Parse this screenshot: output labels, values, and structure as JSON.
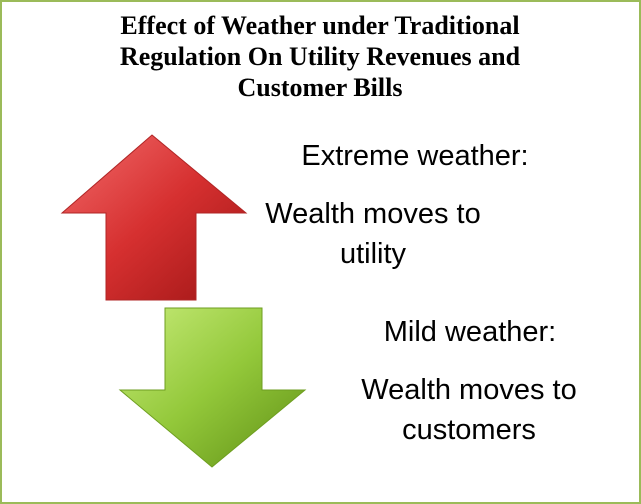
{
  "title": "Effect of Weather under Traditional Regulation On Utility Revenues and Customer Bills",
  "extreme": {
    "heading": "Extreme weather:",
    "description": "Wealth moves to utility"
  },
  "mild": {
    "heading": "Mild weather:",
    "description": "Wealth moves to customers"
  }
}
